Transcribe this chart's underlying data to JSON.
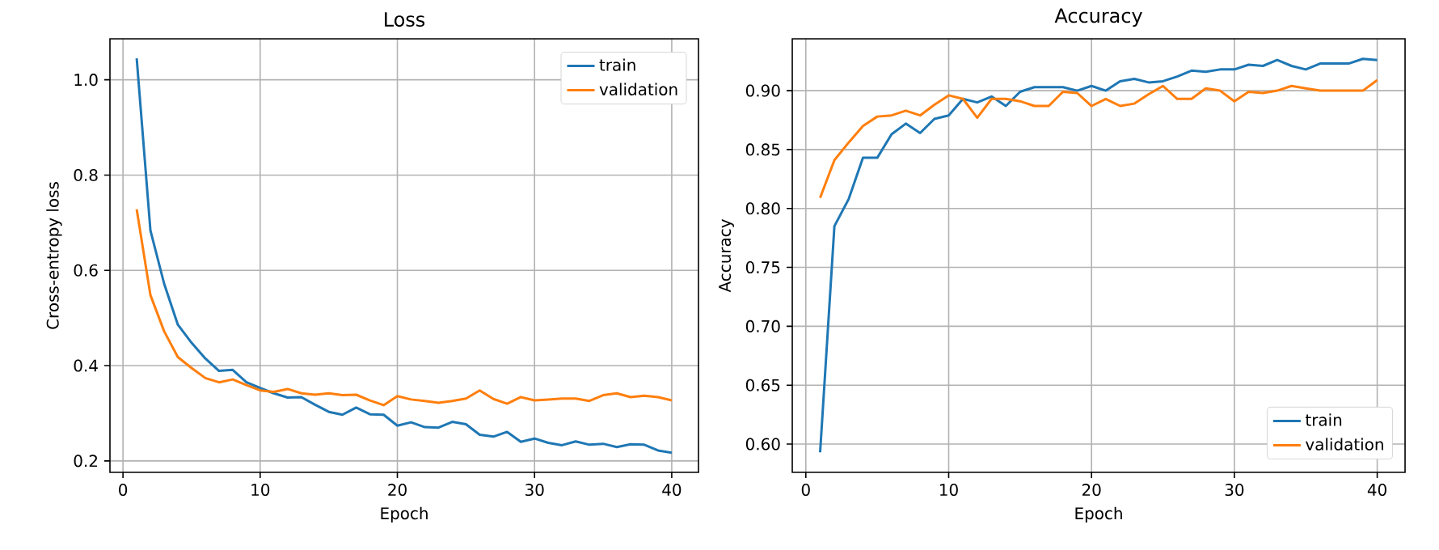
{
  "chart_data": [
    {
      "type": "line",
      "title": "Loss",
      "xlabel": "Epoch",
      "ylabel": "Cross-entropy loss",
      "x": [
        1,
        2,
        3,
        4,
        5,
        6,
        7,
        8,
        9,
        10,
        11,
        12,
        13,
        14,
        15,
        16,
        17,
        18,
        19,
        20,
        21,
        22,
        23,
        24,
        25,
        26,
        27,
        28,
        29,
        30,
        31,
        32,
        33,
        34,
        35,
        36,
        37,
        38,
        39,
        40
      ],
      "series": [
        {
          "name": "train",
          "color": "#1f77b4",
          "values": [
            1.045,
            0.684,
            0.572,
            0.486,
            0.448,
            0.415,
            0.389,
            0.391,
            0.365,
            0.353,
            0.342,
            0.333,
            0.334,
            0.318,
            0.303,
            0.297,
            0.312,
            0.298,
            0.297,
            0.274,
            0.281,
            0.271,
            0.27,
            0.282,
            0.277,
            0.255,
            0.251,
            0.261,
            0.24,
            0.247,
            0.238,
            0.233,
            0.241,
            0.234,
            0.236,
            0.229,
            0.235,
            0.234,
            0.222,
            0.217
          ]
        },
        {
          "name": "validation",
          "color": "#ff7f0e",
          "values": [
            0.728,
            0.548,
            0.472,
            0.418,
            0.395,
            0.374,
            0.365,
            0.371,
            0.359,
            0.348,
            0.345,
            0.351,
            0.342,
            0.339,
            0.342,
            0.338,
            0.339,
            0.327,
            0.317,
            0.336,
            0.329,
            0.326,
            0.322,
            0.326,
            0.331,
            0.348,
            0.33,
            0.32,
            0.334,
            0.327,
            0.329,
            0.331,
            0.331,
            0.326,
            0.338,
            0.342,
            0.334,
            0.337,
            0.334,
            0.327
          ]
        }
      ],
      "xlim": [
        -0.95,
        41.95
      ],
      "ylim": [
        0.176,
        1.086
      ],
      "xticks": [
        0,
        10,
        20,
        30,
        40
      ],
      "yticks": [
        {
          "value": 0.2,
          "label": "0.2"
        },
        {
          "value": 0.4,
          "label": "0.4"
        },
        {
          "value": 0.6,
          "label": "0.6"
        },
        {
          "value": 0.8,
          "label": "0.8"
        },
        {
          "value": 1.0,
          "label": "1.0"
        }
      ],
      "grid": true,
      "legend": "top right"
    },
    {
      "type": "line",
      "title": "Accuracy",
      "xlabel": "Epoch",
      "ylabel": "Accuracy",
      "x": [
        1,
        2,
        3,
        4,
        5,
        6,
        7,
        8,
        9,
        10,
        11,
        12,
        13,
        14,
        15,
        16,
        17,
        18,
        19,
        20,
        21,
        22,
        23,
        24,
        25,
        26,
        27,
        28,
        29,
        30,
        31,
        32,
        33,
        34,
        35,
        36,
        37,
        38,
        39,
        40
      ],
      "series": [
        {
          "name": "train",
          "color": "#1f77b4",
          "values": [
            0.593,
            0.785,
            0.808,
            0.843,
            0.843,
            0.863,
            0.872,
            0.864,
            0.876,
            0.879,
            0.893,
            0.89,
            0.895,
            0.887,
            0.899,
            0.903,
            0.903,
            0.903,
            0.9,
            0.904,
            0.9,
            0.908,
            0.91,
            0.907,
            0.908,
            0.912,
            0.917,
            0.916,
            0.918,
            0.918,
            0.922,
            0.921,
            0.926,
            0.921,
            0.918,
            0.923,
            0.923,
            0.923,
            0.927,
            0.926
          ]
        },
        {
          "name": "validation",
          "color": "#ff7f0e",
          "values": [
            0.809,
            0.841,
            0.856,
            0.87,
            0.878,
            0.879,
            0.883,
            0.879,
            0.888,
            0.896,
            0.893,
            0.877,
            0.893,
            0.893,
            0.891,
            0.887,
            0.887,
            0.899,
            0.898,
            0.887,
            0.893,
            0.887,
            0.889,
            0.897,
            0.904,
            0.893,
            0.893,
            0.902,
            0.9,
            0.891,
            0.899,
            0.898,
            0.9,
            0.904,
            0.902,
            0.9,
            0.9,
            0.9,
            0.9,
            0.909
          ]
        }
      ],
      "xlim": [
        -0.95,
        41.95
      ],
      "ylim": [
        0.576,
        0.944
      ],
      "xticks": [
        0,
        10,
        20,
        30,
        40
      ],
      "yticks": [
        {
          "value": 0.6,
          "label": "0.60"
        },
        {
          "value": 0.65,
          "label": "0.65"
        },
        {
          "value": 0.7,
          "label": "0.70"
        },
        {
          "value": 0.75,
          "label": "0.75"
        },
        {
          "value": 0.8,
          "label": "0.80"
        },
        {
          "value": 0.85,
          "label": "0.85"
        },
        {
          "value": 0.9,
          "label": "0.90"
        }
      ],
      "grid": true,
      "legend": "bottom right"
    }
  ]
}
